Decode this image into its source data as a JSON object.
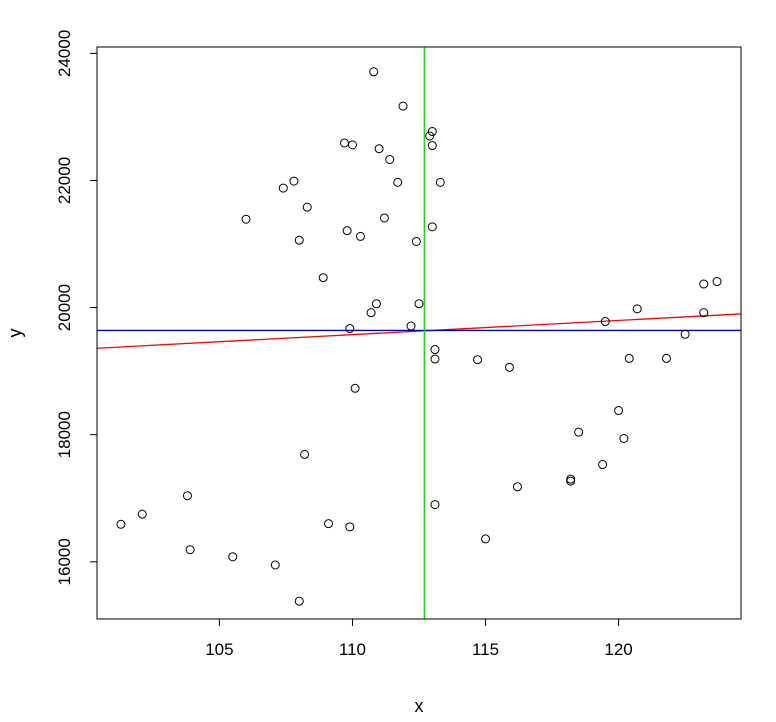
{
  "chart_data": {
    "type": "scatter",
    "title": "",
    "xlabel": "x",
    "ylabel": "y",
    "xlim": [
      100.4,
      124.6
    ],
    "ylim": [
      15100,
      24100
    ],
    "x_ticks": [
      105,
      110,
      115,
      120
    ],
    "y_ticks": [
      16000,
      18000,
      20000,
      22000,
      24000
    ],
    "grid": false,
    "points": [
      {
        "x": 101.3,
        "y": 16590
      },
      {
        "x": 102.1,
        "y": 16750
      },
      {
        "x": 103.8,
        "y": 17040
      },
      {
        "x": 103.9,
        "y": 16190
      },
      {
        "x": 105.5,
        "y": 16080
      },
      {
        "x": 106.0,
        "y": 21390
      },
      {
        "x": 107.1,
        "y": 15950
      },
      {
        "x": 107.4,
        "y": 21880
      },
      {
        "x": 107.8,
        "y": 21990
      },
      {
        "x": 108.0,
        "y": 21060
      },
      {
        "x": 108.0,
        "y": 15380
      },
      {
        "x": 108.2,
        "y": 17690
      },
      {
        "x": 108.3,
        "y": 21580
      },
      {
        "x": 108.9,
        "y": 20470
      },
      {
        "x": 109.1,
        "y": 16600
      },
      {
        "x": 109.7,
        "y": 22590
      },
      {
        "x": 109.8,
        "y": 21210
      },
      {
        "x": 109.9,
        "y": 16550
      },
      {
        "x": 109.9,
        "y": 19670
      },
      {
        "x": 110.0,
        "y": 22560
      },
      {
        "x": 110.1,
        "y": 18730
      },
      {
        "x": 110.3,
        "y": 21120
      },
      {
        "x": 110.7,
        "y": 19920
      },
      {
        "x": 110.8,
        "y": 23710
      },
      {
        "x": 110.9,
        "y": 20060
      },
      {
        "x": 111.0,
        "y": 22500
      },
      {
        "x": 111.2,
        "y": 21410
      },
      {
        "x": 111.4,
        "y": 22330
      },
      {
        "x": 111.7,
        "y": 21970
      },
      {
        "x": 111.9,
        "y": 23170
      },
      {
        "x": 112.2,
        "y": 19710
      },
      {
        "x": 112.4,
        "y": 21040
      },
      {
        "x": 112.5,
        "y": 20060
      },
      {
        "x": 112.9,
        "y": 22700
      },
      {
        "x": 113.0,
        "y": 22550
      },
      {
        "x": 113.0,
        "y": 22770
      },
      {
        "x": 113.0,
        "y": 21270
      },
      {
        "x": 113.1,
        "y": 19340
      },
      {
        "x": 113.1,
        "y": 19190
      },
      {
        "x": 113.1,
        "y": 16900
      },
      {
        "x": 113.3,
        "y": 21970
      },
      {
        "x": 114.7,
        "y": 19180
      },
      {
        "x": 115.0,
        "y": 16360
      },
      {
        "x": 115.9,
        "y": 19060
      },
      {
        "x": 116.2,
        "y": 17180
      },
      {
        "x": 118.2,
        "y": 17300
      },
      {
        "x": 118.2,
        "y": 17270
      },
      {
        "x": 118.5,
        "y": 18040
      },
      {
        "x": 119.4,
        "y": 17530
      },
      {
        "x": 119.5,
        "y": 19780
      },
      {
        "x": 120.0,
        "y": 18380
      },
      {
        "x": 120.2,
        "y": 17940
      },
      {
        "x": 120.4,
        "y": 19200
      },
      {
        "x": 120.7,
        "y": 19980
      },
      {
        "x": 121.8,
        "y": 19200
      },
      {
        "x": 122.5,
        "y": 19580
      },
      {
        "x": 123.2,
        "y": 20370
      },
      {
        "x": 123.2,
        "y": 19920
      },
      {
        "x": 123.7,
        "y": 20410
      }
    ],
    "lines": [
      {
        "kind": "regression",
        "color": "#ff0000",
        "x": [
          100.4,
          124.6
        ],
        "y": [
          19360,
          19900
        ]
      },
      {
        "kind": "horizontal",
        "color": "#0000cc",
        "value": 19640
      },
      {
        "kind": "vertical",
        "color": "#00dd00",
        "value": 112.7
      }
    ]
  }
}
